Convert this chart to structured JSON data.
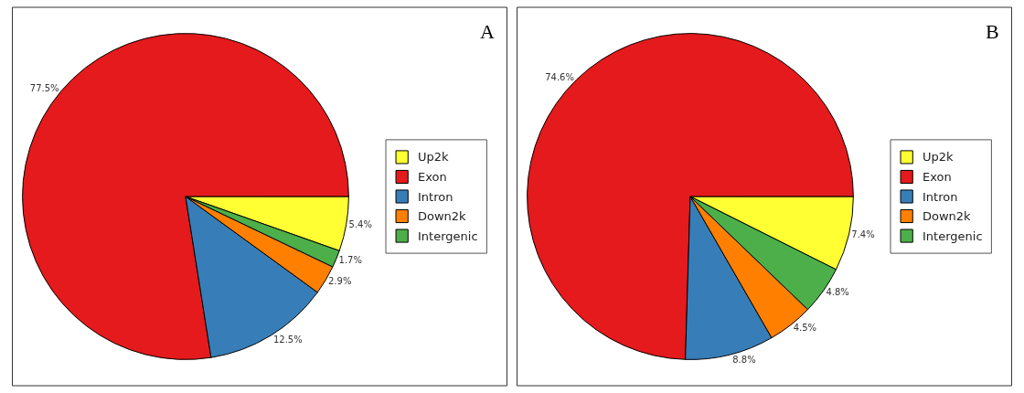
{
  "chart_data": [
    {
      "type": "pie",
      "title": "A",
      "categories": [
        "Up2k",
        "Exon",
        "Intron",
        "Down2k",
        "Intergenic"
      ],
      "values": [
        5.4,
        77.5,
        12.5,
        2.9,
        1.7
      ],
      "colors": [
        "#ffff33",
        "#e41a1c",
        "#377eb8",
        "#ff7f00",
        "#4daf4a"
      ],
      "value_labels": [
        "5.4%",
        "77.5%",
        "12.5%",
        "2.9%",
        "1.7%"
      ],
      "legend": "right"
    },
    {
      "type": "pie",
      "title": "B",
      "categories": [
        "Up2k",
        "Exon",
        "Intron",
        "Down2k",
        "Intergenic"
      ],
      "values": [
        7.4,
        74.6,
        8.8,
        4.5,
        4.8
      ],
      "colors": [
        "#ffff33",
        "#e41a1c",
        "#377eb8",
        "#ff7f00",
        "#4daf4a"
      ],
      "value_labels": [
        "7.4%",
        "74.6%",
        "8.8%",
        "4.5%",
        "4.8%"
      ],
      "legend": "right"
    }
  ]
}
